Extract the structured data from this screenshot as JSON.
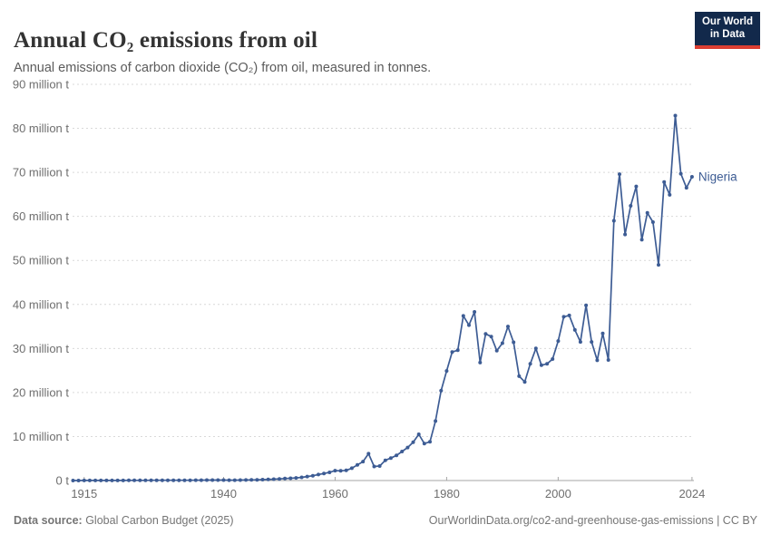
{
  "header": {
    "title": "Annual CO₂ emissions from oil",
    "subtitle": "Annual emissions of carbon dioxide (CO₂) from oil, measured in tonnes.",
    "logo": {
      "line1": "Our World",
      "line2": "in Data"
    }
  },
  "footer": {
    "source_label": "Data source:",
    "source_text": " Global Carbon Budget (2025)",
    "license_text": "OurWorldinData.org/co2-and-greenhouse-gas-emissions | CC BY"
  },
  "colors": {
    "series": "#3d5c94",
    "logo_bg": "#12294b",
    "logo_accent": "#dc3e32",
    "grid": "#d9d9d9",
    "axis": "#a5a5a5",
    "tick_label": "#6e6e6e"
  },
  "chart_data": {
    "type": "line",
    "title": "Annual CO₂ emissions from oil",
    "ylabel": "",
    "xlabel": "",
    "unit": "million tonnes of CO₂",
    "grid": "horizontal dashed",
    "legend_position": "end-of-line label",
    "xlim": [
      1913,
      2024
    ],
    "ylim": [
      0,
      90
    ],
    "x_ticks": [
      {
        "value": 1915,
        "label": "1915"
      },
      {
        "value": 1940,
        "label": "1940"
      },
      {
        "value": 1960,
        "label": "1960"
      },
      {
        "value": 1980,
        "label": "1980"
      },
      {
        "value": 2000,
        "label": "2000"
      },
      {
        "value": 2024,
        "label": "2024"
      }
    ],
    "y_ticks": [
      {
        "value": 0,
        "label": "0 t"
      },
      {
        "value": 10,
        "label": "10 million t"
      },
      {
        "value": 20,
        "label": "20 million t"
      },
      {
        "value": 30,
        "label": "30 million t"
      },
      {
        "value": 40,
        "label": "40 million t"
      },
      {
        "value": 50,
        "label": "50 million t"
      },
      {
        "value": 60,
        "label": "60 million t"
      },
      {
        "value": 70,
        "label": "70 million t"
      },
      {
        "value": 80,
        "label": "80 million t"
      },
      {
        "value": 90,
        "label": "90 million t"
      }
    ],
    "series": [
      {
        "name": "Nigeria",
        "color": "#3d5c94",
        "years": [
          1913,
          1914,
          1915,
          1916,
          1917,
          1918,
          1919,
          1920,
          1921,
          1922,
          1923,
          1924,
          1925,
          1926,
          1927,
          1928,
          1929,
          1930,
          1931,
          1932,
          1933,
          1934,
          1935,
          1936,
          1937,
          1938,
          1939,
          1940,
          1941,
          1942,
          1943,
          1944,
          1945,
          1946,
          1947,
          1948,
          1949,
          1950,
          1951,
          1952,
          1953,
          1954,
          1955,
          1956,
          1957,
          1958,
          1959,
          1960,
          1961,
          1962,
          1963,
          1964,
          1965,
          1966,
          1967,
          1968,
          1969,
          1970,
          1971,
          1972,
          1973,
          1974,
          1975,
          1976,
          1977,
          1978,
          1979,
          1980,
          1981,
          1982,
          1983,
          1984,
          1985,
          1986,
          1987,
          1988,
          1989,
          1990,
          1991,
          1992,
          1993,
          1994,
          1995,
          1996,
          1997,
          1998,
          1999,
          2000,
          2001,
          2002,
          2003,
          2004,
          2005,
          2006,
          2007,
          2008,
          2009,
          2010,
          2011,
          2012,
          2013,
          2014,
          2015,
          2016,
          2017,
          2018,
          2019,
          2020,
          2021,
          2022,
          2023,
          2024
        ],
        "values_million_t": [
          0.01,
          0.01,
          0.02,
          0.02,
          0.02,
          0.02,
          0.03,
          0.03,
          0.03,
          0.03,
          0.04,
          0.04,
          0.05,
          0.05,
          0.06,
          0.06,
          0.07,
          0.07,
          0.06,
          0.06,
          0.07,
          0.07,
          0.08,
          0.09,
          0.1,
          0.11,
          0.11,
          0.1,
          0.09,
          0.09,
          0.1,
          0.12,
          0.14,
          0.16,
          0.2,
          0.25,
          0.3,
          0.38,
          0.45,
          0.52,
          0.6,
          0.72,
          0.9,
          1.1,
          1.35,
          1.6,
          1.85,
          2.25,
          2.2,
          2.3,
          2.8,
          3.55,
          4.3,
          6.1,
          3.2,
          3.3,
          4.6,
          5.1,
          5.7,
          6.6,
          7.5,
          8.7,
          10.5,
          8.4,
          8.8,
          13.5,
          20.4,
          24.9,
          29.2,
          29.6,
          37.4,
          35.3,
          38.3,
          26.8,
          33.3,
          32.7,
          29.5,
          31.2,
          35.0,
          31.4,
          23.7,
          22.4,
          26.5,
          30.0,
          26.2,
          26.5,
          27.6,
          31.7,
          37.2,
          37.5,
          34.2,
          31.5,
          39.8,
          31.5,
          27.3,
          33.4,
          27.4,
          59.0,
          69.6,
          55.9,
          62.4,
          66.8,
          54.7,
          60.8,
          58.7,
          49.0,
          67.8,
          64.9,
          82.9,
          69.7,
          66.5,
          69.0
        ]
      }
    ]
  }
}
